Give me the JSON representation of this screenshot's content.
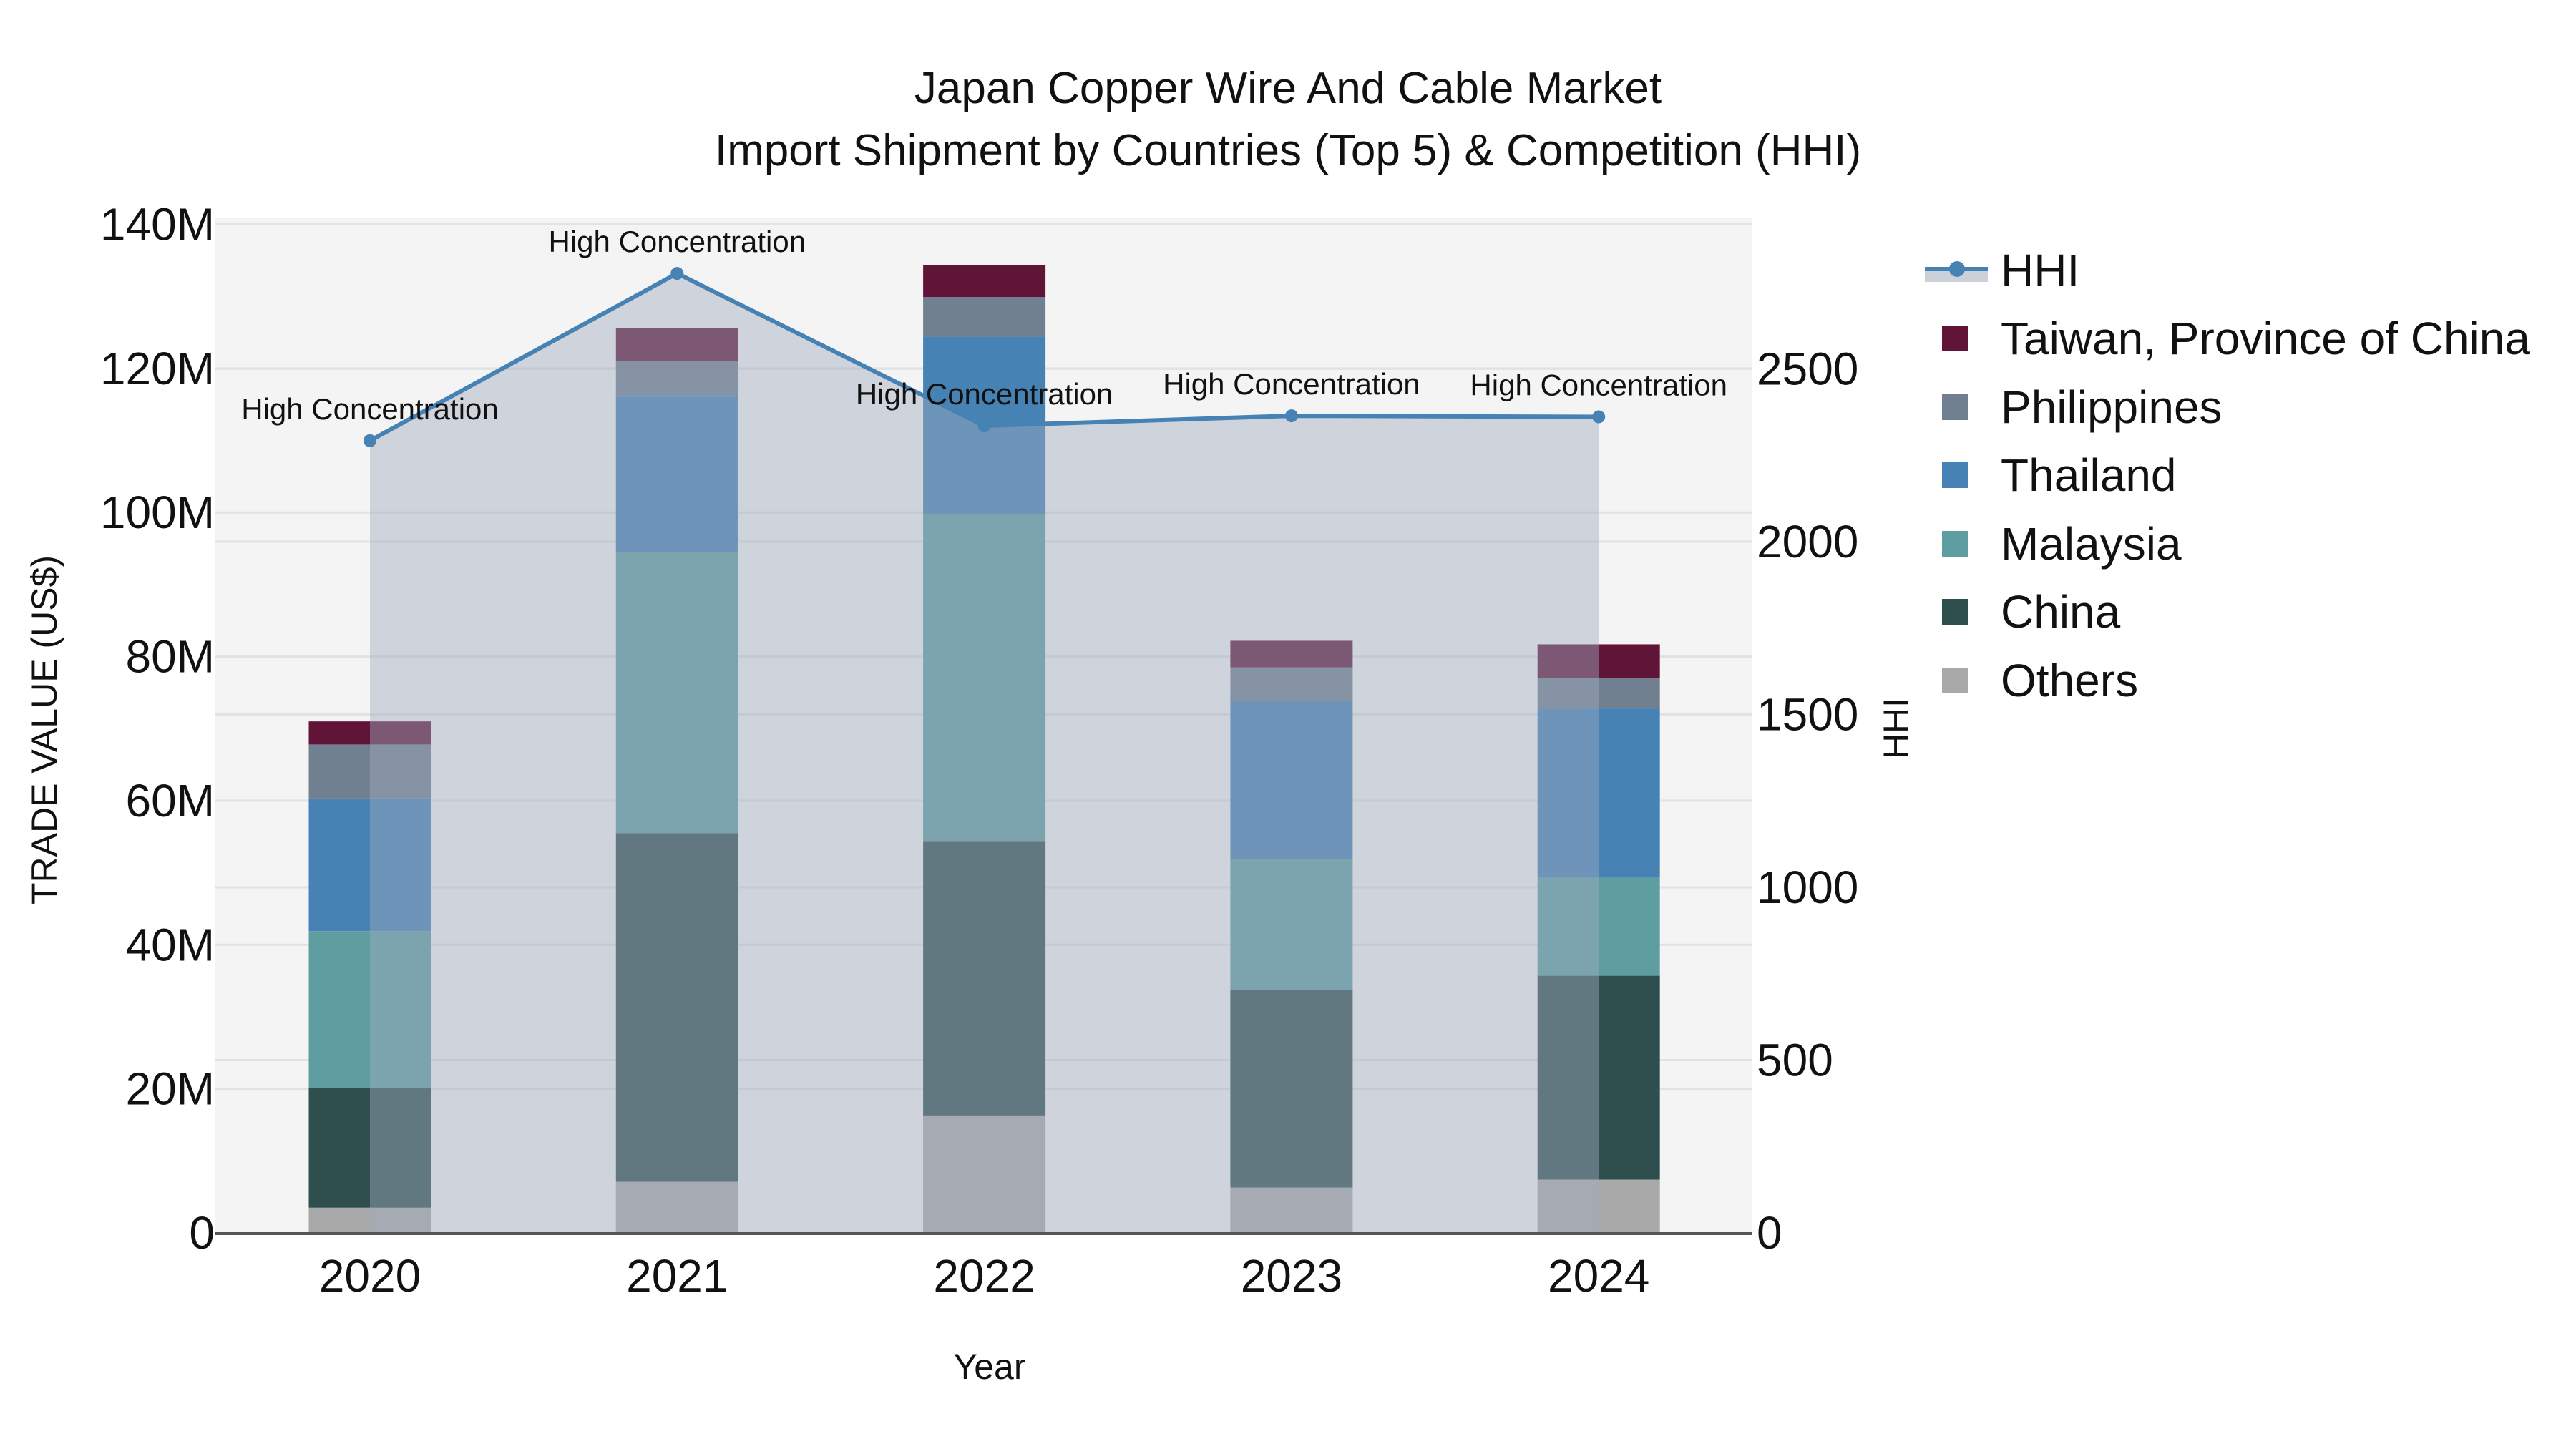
{
  "title": {
    "line1": "Japan Copper Wire And Cable Market",
    "line2": "Import Shipment by Countries (Top 5) & Competition (HHI)"
  },
  "axes": {
    "x_title": "Year",
    "y_left_title": "TRADE VALUE (US$)",
    "y_right_title": "HHI",
    "y_left_ticks": [
      "0",
      "20M",
      "40M",
      "60M",
      "80M",
      "100M",
      "120M",
      "140M"
    ],
    "y_right_ticks": [
      "0",
      "500",
      "1000",
      "1500",
      "2000",
      "2500"
    ]
  },
  "legend": {
    "items": [
      {
        "label": "HHI",
        "kind": "line",
        "color": "#4682b4"
      },
      {
        "label": "Taiwan, Province of China",
        "kind": "bar",
        "color": "#601437"
      },
      {
        "label": "Philippines",
        "kind": "bar",
        "color": "#708090"
      },
      {
        "label": "Thailand",
        "kind": "bar",
        "color": "#4682b4"
      },
      {
        "label": "Malaysia",
        "kind": "bar",
        "color": "#5f9ea0"
      },
      {
        "label": "China",
        "kind": "bar",
        "color": "#2f4f4f"
      },
      {
        "label": "Others",
        "kind": "bar",
        "color": "#a9a9a9"
      }
    ]
  },
  "chart_data": {
    "type": "bar",
    "stacked": true,
    "title": "Japan Copper Wire And Cable Market\nImport Shipment by Countries (Top 5) & Competition (HHI)",
    "xlabel": "Year",
    "ylabel": "TRADE VALUE (US$)",
    "y2label": "HHI",
    "ylim": [
      0,
      140000000
    ],
    "y2lim": [
      0,
      2918
    ],
    "grid": true,
    "legend_position": "right",
    "categories": [
      "2020",
      "2021",
      "2022",
      "2023",
      "2024"
    ],
    "series": [
      {
        "name": "Others",
        "color": "#a9a9a9",
        "values": [
          3500000,
          7100000,
          16300000,
          6300000,
          7400000
        ]
      },
      {
        "name": "China",
        "color": "#2f4f4f",
        "values": [
          16600000,
          48400000,
          38000000,
          27500000,
          28300000
        ]
      },
      {
        "name": "Malaysia",
        "color": "#5f9ea0",
        "values": [
          21800000,
          39000000,
          45500000,
          18100000,
          13600000
        ]
      },
      {
        "name": "Thailand",
        "color": "#4682b4",
        "values": [
          18400000,
          21600000,
          24600000,
          21900000,
          23500000
        ]
      },
      {
        "name": "Philippines",
        "color": "#708090",
        "values": [
          7500000,
          4900000,
          5500000,
          4700000,
          4200000
        ]
      },
      {
        "name": "Taiwan, Province of China",
        "color": "#601437",
        "values": [
          3200000,
          4600000,
          4400000,
          3700000,
          4700000
        ]
      }
    ],
    "line_series": {
      "name": "HHI",
      "axis": "right",
      "color": "#4682b4",
      "fill": "tozeroy",
      "values": [
        2292,
        2776,
        2335,
        2364,
        2361
      ],
      "annotations": [
        "High Concentration",
        "High Concentration",
        "High Concentration",
        "High Concentration",
        "High Concentration"
      ]
    }
  }
}
